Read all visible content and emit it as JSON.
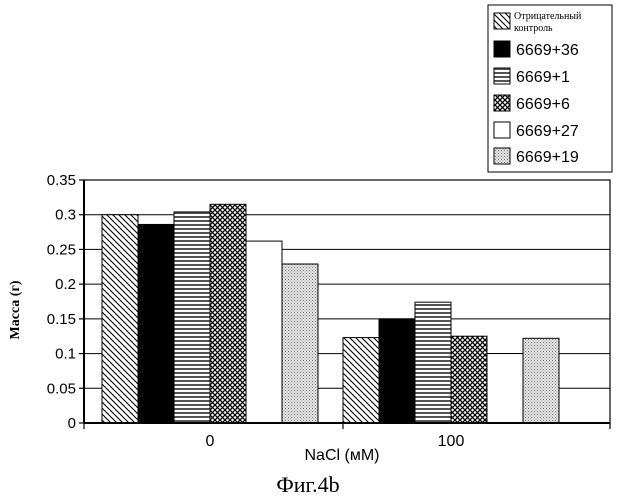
{
  "figure_caption": "Фиг.4b",
  "chart_data": {
    "type": "bar",
    "title": "",
    "xlabel": "NaCl (мМ)",
    "ylabel": "Масса (г)",
    "categories": [
      "0",
      "100"
    ],
    "ylim": [
      0,
      0.35
    ],
    "yticks": [
      "0",
      "0.05",
      "0.1",
      "0.15",
      "0.2",
      "0.25",
      "0.3",
      "0.35"
    ],
    "grid": true,
    "legend_position": "top-right",
    "series": [
      {
        "name": "Отрицательный контроль",
        "values": [
          0.3,
          0.123
        ],
        "pattern": "diag-down"
      },
      {
        "name": "6669+36",
        "values": [
          0.286,
          0.15
        ],
        "pattern": "solid-black"
      },
      {
        "name": "6669+1",
        "values": [
          0.304,
          0.174
        ],
        "pattern": "horizontal"
      },
      {
        "name": "6669+6",
        "values": [
          0.315,
          0.125
        ],
        "pattern": "crosshatch"
      },
      {
        "name": "6669+27",
        "values": [
          0.262,
          0.1
        ],
        "pattern": "white"
      },
      {
        "name": "6669+19",
        "values": [
          0.229,
          0.122
        ],
        "pattern": "dots"
      }
    ]
  }
}
